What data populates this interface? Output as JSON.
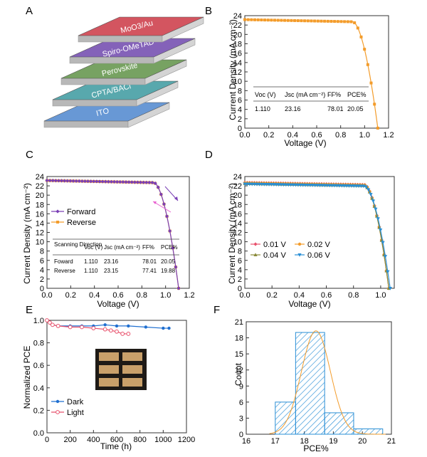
{
  "panels": {
    "A": {
      "letter": "A",
      "layers": [
        "ITO",
        "CPTA/BACl",
        "Perovskite",
        "Spiro-OMeTAD",
        "MoO3/Au"
      ],
      "layer_colors": [
        "#5b8fd1",
        "#4aa1a6",
        "#6b9a55",
        "#7a55b3",
        "#cf4653"
      ]
    },
    "B": {
      "letter": "B",
      "xlabel": "Voltage (V)",
      "ylabel": "Current Density (mA cm⁻²)",
      "table": {
        "headers": [
          "Voc (V)",
          "Jsc (mA cm⁻²)",
          "FF%",
          "PCE%"
        ],
        "rows": [
          [
            "1.110",
            "23.16",
            "78.01",
            "20.05"
          ]
        ]
      }
    },
    "C": {
      "letter": "C",
      "xlabel": "Voltage (V)",
      "ylabel": "Current Density (mA cm⁻²)",
      "legend": [
        "Forward",
        "Reverse"
      ],
      "table": {
        "headers": [
          "Scanning Direction",
          "Voc (V)",
          "Jsc (mA cm⁻²)",
          "FF%",
          "PCE%"
        ],
        "rows": [
          [
            "Foward",
            "1.110",
            "23.16",
            "78.01",
            "20.05"
          ],
          [
            "Reverse",
            "1.110",
            "23.15",
            "77.41",
            "19.88"
          ]
        ]
      }
    },
    "D": {
      "letter": "D",
      "xlabel": "Voltage (V)",
      "ylabel": "Current Density (mA cm⁻²)",
      "legend": [
        "0.01 V",
        "0.02 V",
        "0.04 V",
        "0.06 V"
      ]
    },
    "E": {
      "letter": "E",
      "xlabel": "Time (h)",
      "ylabel": "Normalized PCE",
      "legend": [
        "Dark",
        "Light"
      ]
    },
    "F": {
      "letter": "F",
      "xlabel": "PCE%",
      "ylabel": "Count"
    }
  },
  "chart_data": [
    {
      "panel": "B",
      "type": "line",
      "xlim": [
        0,
        1.2
      ],
      "ylim": [
        0,
        24
      ],
      "xticks": [
        "0.0",
        "0.2",
        "0.4",
        "0.6",
        "0.8",
        "1.0",
        "1.2"
      ],
      "yticks": [
        "0",
        "2",
        "4",
        "6",
        "8",
        "10",
        "12",
        "14",
        "16",
        "18",
        "20",
        "22",
        "24"
      ],
      "series": [
        {
          "color": "#f39c2b",
          "Jsc": 23.16,
          "Voc": 1.11,
          "knee": 0.9
        }
      ]
    },
    {
      "panel": "C",
      "type": "line",
      "xlim": [
        0,
        1.2
      ],
      "ylim": [
        0,
        24
      ],
      "xticks": [
        "0.0",
        "0.2",
        "0.4",
        "0.6",
        "0.8",
        "1.0",
        "1.2"
      ],
      "yticks": [
        "0",
        "2",
        "4",
        "6",
        "8",
        "10",
        "12",
        "14",
        "16",
        "18",
        "20",
        "22",
        "24"
      ],
      "series": [
        {
          "name": "Forward",
          "color": "#7a3fb5",
          "Jsc": 23.16,
          "Voc": 1.11,
          "knee": 0.9
        },
        {
          "name": "Reverse",
          "color": "#f39c2b",
          "Jsc": 23.15,
          "Voc": 1.11,
          "knee": 0.9
        }
      ]
    },
    {
      "panel": "D",
      "type": "line",
      "xlim": [
        0,
        1.1
      ],
      "ylim": [
        0,
        24
      ],
      "xticks": [
        "0.0",
        "0.2",
        "0.4",
        "0.6",
        "0.8",
        "1.0"
      ],
      "yticks": [
        "0",
        "2",
        "4",
        "6",
        "8",
        "10",
        "12",
        "14",
        "16",
        "18",
        "20",
        "22",
        "24"
      ],
      "series": [
        {
          "name": "0.01 V",
          "color": "#e8516c",
          "Jsc": 22.7,
          "Voc": 1.06,
          "knee": 0.88
        },
        {
          "name": "0.02 V",
          "color": "#f39c2b",
          "Jsc": 22.6,
          "Voc": 1.06,
          "knee": 0.88
        },
        {
          "name": "0.04 V",
          "color": "#8a8a3a",
          "Jsc": 22.5,
          "Voc": 1.06,
          "knee": 0.88
        },
        {
          "name": "0.06 V",
          "color": "#2a8fd6",
          "Jsc": 22.4,
          "Voc": 1.07,
          "knee": 0.88
        }
      ]
    },
    {
      "panel": "E",
      "type": "line",
      "xlim": [
        0,
        1200
      ],
      "ylim": [
        0,
        1.0
      ],
      "xticks": [
        "0",
        "200",
        "400",
        "600",
        "800",
        "1000",
        "1200"
      ],
      "yticks": [
        "0.0",
        "0.2",
        "0.4",
        "0.6",
        "0.8",
        "1.0"
      ],
      "series": [
        {
          "name": "Dark",
          "color": "#1f6fd0",
          "x": [
            0,
            24,
            48,
            96,
            200,
            300,
            400,
            500,
            600,
            700,
            850,
            1000,
            1050
          ],
          "y": [
            1.0,
            0.98,
            0.96,
            0.95,
            0.95,
            0.95,
            0.95,
            0.96,
            0.95,
            0.95,
            0.94,
            0.93,
            0.93
          ]
        },
        {
          "name": "Light",
          "color": "#e8516c",
          "x": [
            0,
            24,
            48,
            96,
            200,
            300,
            400,
            500,
            550,
            600,
            650,
            700
          ],
          "y": [
            1.0,
            0.98,
            0.96,
            0.95,
            0.94,
            0.94,
            0.93,
            0.92,
            0.91,
            0.9,
            0.88,
            0.88
          ]
        }
      ]
    },
    {
      "panel": "F",
      "type": "bar",
      "xlim": [
        16,
        21
      ],
      "ylim": [
        0,
        21
      ],
      "xticks": [
        "16",
        "17",
        "18",
        "19",
        "20",
        "21"
      ],
      "yticks": [
        "0",
        "3",
        "6",
        "9",
        "12",
        "15",
        "18",
        "21"
      ],
      "bins": [
        [
          17,
          17.7
        ],
        [
          17.7,
          18.7
        ],
        [
          18.7,
          19.7
        ],
        [
          19.7,
          20.7
        ]
      ],
      "values": [
        6,
        19,
        4,
        1
      ],
      "fit": {
        "mean": 18.4,
        "sigma": 0.5,
        "peak": 19.3,
        "color": "#f39c2b"
      },
      "bar_color": "#2a8fd6"
    }
  ]
}
